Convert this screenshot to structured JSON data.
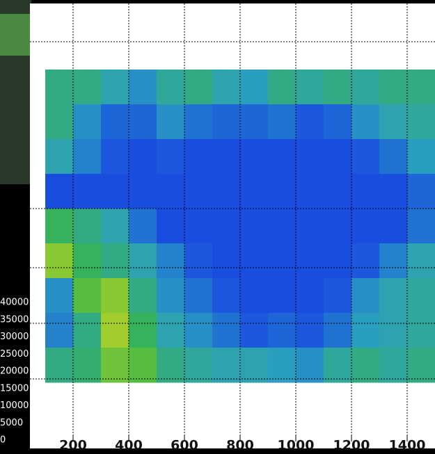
{
  "chart_data": {
    "type": "heatmap",
    "xlim": [
      0,
      1500
    ],
    "xticks": [
      200,
      400,
      600,
      800,
      1000,
      1200,
      1400
    ],
    "xbins": [
      100,
      200,
      300,
      400,
      500,
      600,
      700,
      800,
      900,
      1000,
      1100,
      1200,
      1300,
      1400,
      1500
    ],
    "z": [
      [
        20000,
        20000,
        18000,
        16000,
        19000,
        20000,
        18000,
        17000,
        20000,
        19000,
        20000,
        19000,
        20000,
        20000
      ],
      [
        20000,
        16000,
        13000,
        13000,
        16000,
        14000,
        13000,
        13000,
        14000,
        12000,
        13000,
        16000,
        18000,
        19000
      ],
      [
        18000,
        15000,
        12000,
        11000,
        12000,
        11000,
        11000,
        11000,
        11000,
        11000,
        11000,
        12000,
        14000,
        17000
      ],
      [
        11000,
        11000,
        11000,
        11000,
        11000,
        11000,
        11000,
        11000,
        11000,
        11000,
        11000,
        11000,
        11000,
        13000
      ],
      [
        22000,
        20000,
        18000,
        14000,
        11000,
        11000,
        11000,
        11000,
        11000,
        11000,
        11000,
        11000,
        11000,
        14000
      ],
      [
        26000,
        22000,
        20000,
        18000,
        15000,
        12000,
        11000,
        11000,
        11000,
        11000,
        11000,
        12000,
        15000,
        18000
      ],
      [
        16000,
        24000,
        26000,
        20000,
        16000,
        14000,
        12000,
        11000,
        11000,
        11000,
        12000,
        16000,
        18000,
        19000
      ],
      [
        15000,
        20000,
        27000,
        22000,
        18000,
        16000,
        14000,
        12000,
        13000,
        12000,
        14000,
        17000,
        18000,
        19000
      ],
      [
        20000,
        21000,
        25000,
        24000,
        20000,
        19000,
        18000,
        18000,
        17000,
        16000,
        19000,
        20000,
        19000,
        20000
      ]
    ],
    "zlim": [
      0,
      40000
    ],
    "zticks": [
      40000,
      35000,
      30000,
      25000,
      20000,
      15000,
      10000,
      5000,
      0
    ],
    "colorscale": [
      "#ffffff",
      "#1030c8",
      "#1a4fe0",
      "#2aa0c0",
      "#39b54a",
      "#c8d820",
      "#f0c030",
      "#fff0d0"
    ],
    "grid": true
  }
}
